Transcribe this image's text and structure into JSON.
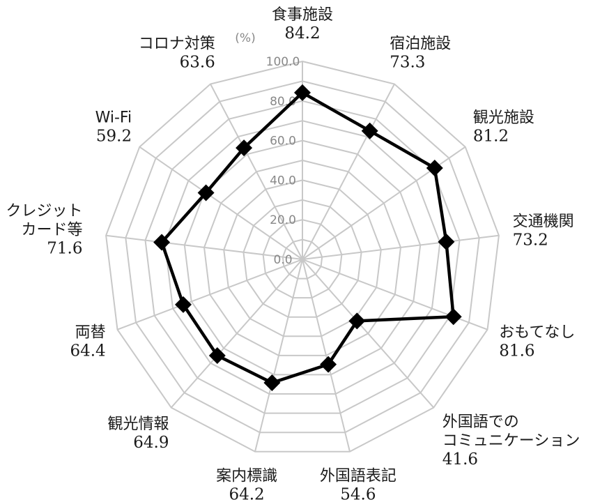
{
  "chart_data": {
    "type": "radar",
    "unit_label": "(%)",
    "rlim": [
      0,
      100
    ],
    "ticks": [
      0.0,
      20.0,
      40.0,
      60.0,
      80.0,
      100.0
    ],
    "tick_labels": [
      "0.0",
      "20.0",
      "40.0",
      "60.0",
      "80.0",
      "100.0"
    ],
    "grid": true,
    "categories": [
      {
        "label": [
          "食事施設"
        ],
        "value": 84.2,
        "value_text": "84.2"
      },
      {
        "label": [
          "宿泊施設"
        ],
        "value": 73.3,
        "value_text": "73.3"
      },
      {
        "label": [
          "観光施設"
        ],
        "value": 81.2,
        "value_text": "81.2"
      },
      {
        "label": [
          "交通機関"
        ],
        "value": 73.2,
        "value_text": "73.2"
      },
      {
        "label": [
          "おもてなし"
        ],
        "value": 81.6,
        "value_text": "81.6"
      },
      {
        "label": [
          "外国語での",
          "コミュニケーション"
        ],
        "value": 41.6,
        "value_text": "41.6"
      },
      {
        "label": [
          "外国語表記"
        ],
        "value": 54.6,
        "value_text": "54.6"
      },
      {
        "label": [
          "案内標識"
        ],
        "value": 64.2,
        "value_text": "64.2"
      },
      {
        "label": [
          "観光情報"
        ],
        "value": 64.9,
        "value_text": "64.9"
      },
      {
        "label": [
          "両替"
        ],
        "value": 64.4,
        "value_text": "64.4"
      },
      {
        "label": [
          "クレジット",
          "カード等"
        ],
        "value": 71.6,
        "value_text": "71.6"
      },
      {
        "label": [
          "Wi-Fi"
        ],
        "value": 59.2,
        "value_text": "59.2"
      },
      {
        "label": [
          "コロナ対策"
        ],
        "value": 63.6,
        "value_text": "63.6"
      }
    ],
    "series_color": "#000000",
    "grid_color": "#c8c8c8",
    "tick_color": "#888888"
  }
}
